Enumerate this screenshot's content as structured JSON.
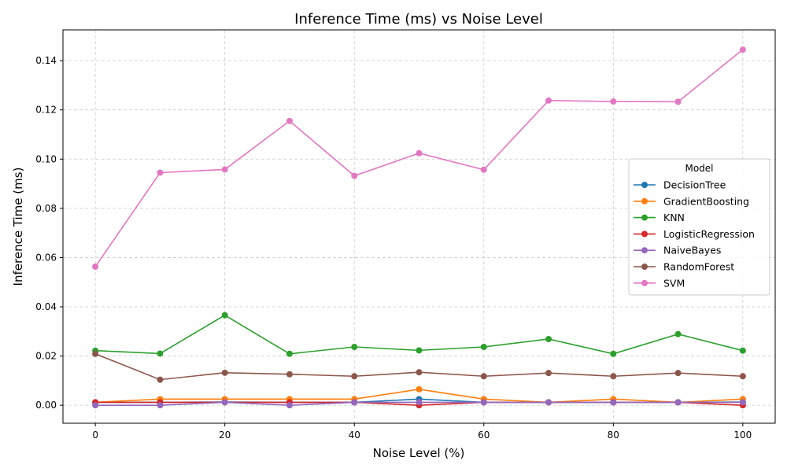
{
  "chart_data": {
    "type": "line",
    "title": "Inference Time (ms) vs Noise Level",
    "xlabel": "Noise Level (%)",
    "ylabel": "Inference Time (ms)",
    "x": [
      0,
      10,
      20,
      30,
      40,
      50,
      60,
      70,
      80,
      90,
      100
    ],
    "xlim": [
      -5,
      105
    ],
    "ylim": [
      -0.0073,
      0.1525
    ],
    "xticks": [
      0,
      20,
      40,
      60,
      80,
      100
    ],
    "xtick_labels": [
      "0",
      "20",
      "40",
      "60",
      "80",
      "100"
    ],
    "yticks": [
      0.0,
      0.02,
      0.04,
      0.06,
      0.08,
      0.1,
      0.12,
      0.14
    ],
    "ytick_labels": [
      "0.00",
      "0.02",
      "0.04",
      "0.06",
      "0.08",
      "0.10",
      "0.12",
      "0.14"
    ],
    "grid": true,
    "legend": {
      "title": "Model",
      "placement": "center-right"
    },
    "series": [
      {
        "name": "DecisionTree",
        "color": "#1f77b4",
        "values": [
          0.0012,
          0.0012,
          0.0013,
          0.0012,
          0.0012,
          0.0025,
          0.0012,
          0.0012,
          0.0012,
          0.0012,
          0.0013
        ]
      },
      {
        "name": "GradientBoosting",
        "color": "#ff7f0e",
        "values": [
          0.0012,
          0.0025,
          0.0025,
          0.0025,
          0.0025,
          0.0065,
          0.0025,
          0.0012,
          0.0025,
          0.0012,
          0.0025
        ]
      },
      {
        "name": "KNN",
        "color": "#2ca02c",
        "values": [
          0.0222,
          0.021,
          0.0366,
          0.0209,
          0.0237,
          0.0223,
          0.0237,
          0.0269,
          0.0209,
          0.0289,
          0.0222
        ]
      },
      {
        "name": "LogisticRegression",
        "color": "#d62728",
        "values": [
          0.0012,
          0.0012,
          0.0012,
          0.0012,
          0.0012,
          0.0,
          0.0012,
          0.0012,
          0.0012,
          0.0012,
          0.0
        ]
      },
      {
        "name": "NaiveBayes",
        "color": "#9467bd",
        "values": [
          0.0,
          0.0,
          0.0012,
          0.0,
          0.0012,
          0.0012,
          0.0012,
          0.0012,
          0.0012,
          0.0012,
          0.0012
        ]
      },
      {
        "name": "RandomForest",
        "color": "#8c564b",
        "values": [
          0.0209,
          0.0104,
          0.0132,
          0.0126,
          0.0118,
          0.0134,
          0.0118,
          0.0131,
          0.0118,
          0.0131,
          0.0118
        ]
      },
      {
        "name": "SVM",
        "color": "#e377c2",
        "values": [
          0.0563,
          0.0945,
          0.0958,
          0.1155,
          0.0932,
          0.1024,
          0.0957,
          0.1238,
          0.1234,
          0.1233,
          0.1445
        ]
      }
    ]
  }
}
